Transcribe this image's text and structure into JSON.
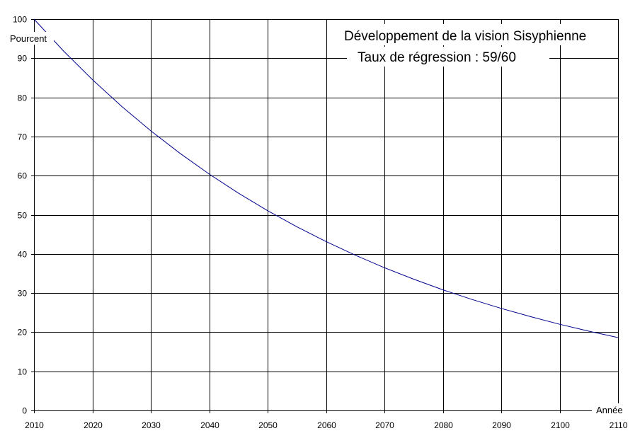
{
  "chart_data": {
    "type": "line",
    "title": "Développement de la vision Sisyphienne",
    "subtitle": "Taux de régression : 59/60",
    "xlabel": "Année",
    "ylabel": "Pourcent",
    "xlim": [
      2010,
      2110
    ],
    "ylim": [
      0,
      100
    ],
    "grid": true,
    "x_ticks": [
      "2010",
      "2020",
      "2030",
      "2040",
      "2050",
      "2060",
      "2070",
      "2080",
      "2090",
      "2100",
      "2110"
    ],
    "y_ticks": [
      "0",
      "10",
      "20",
      "30",
      "40",
      "50",
      "60",
      "70",
      "80",
      "90",
      "100"
    ],
    "series": [
      {
        "name": "Pourcent",
        "color": "#00008b",
        "x": [
          2010,
          2015,
          2020,
          2025,
          2030,
          2035,
          2040,
          2045,
          2050,
          2055,
          2060,
          2065,
          2070,
          2075,
          2080,
          2085,
          2090,
          2095,
          2100,
          2105,
          2110
        ],
        "values": [
          100,
          91.94,
          84.53,
          77.72,
          71.45,
          65.69,
          60.4,
          55.53,
          51.05,
          46.94,
          43.16,
          39.68,
          36.48,
          33.54,
          30.84,
          28.35,
          26.07,
          23.97,
          22.03,
          20.26,
          18.62
        ]
      }
    ]
  }
}
